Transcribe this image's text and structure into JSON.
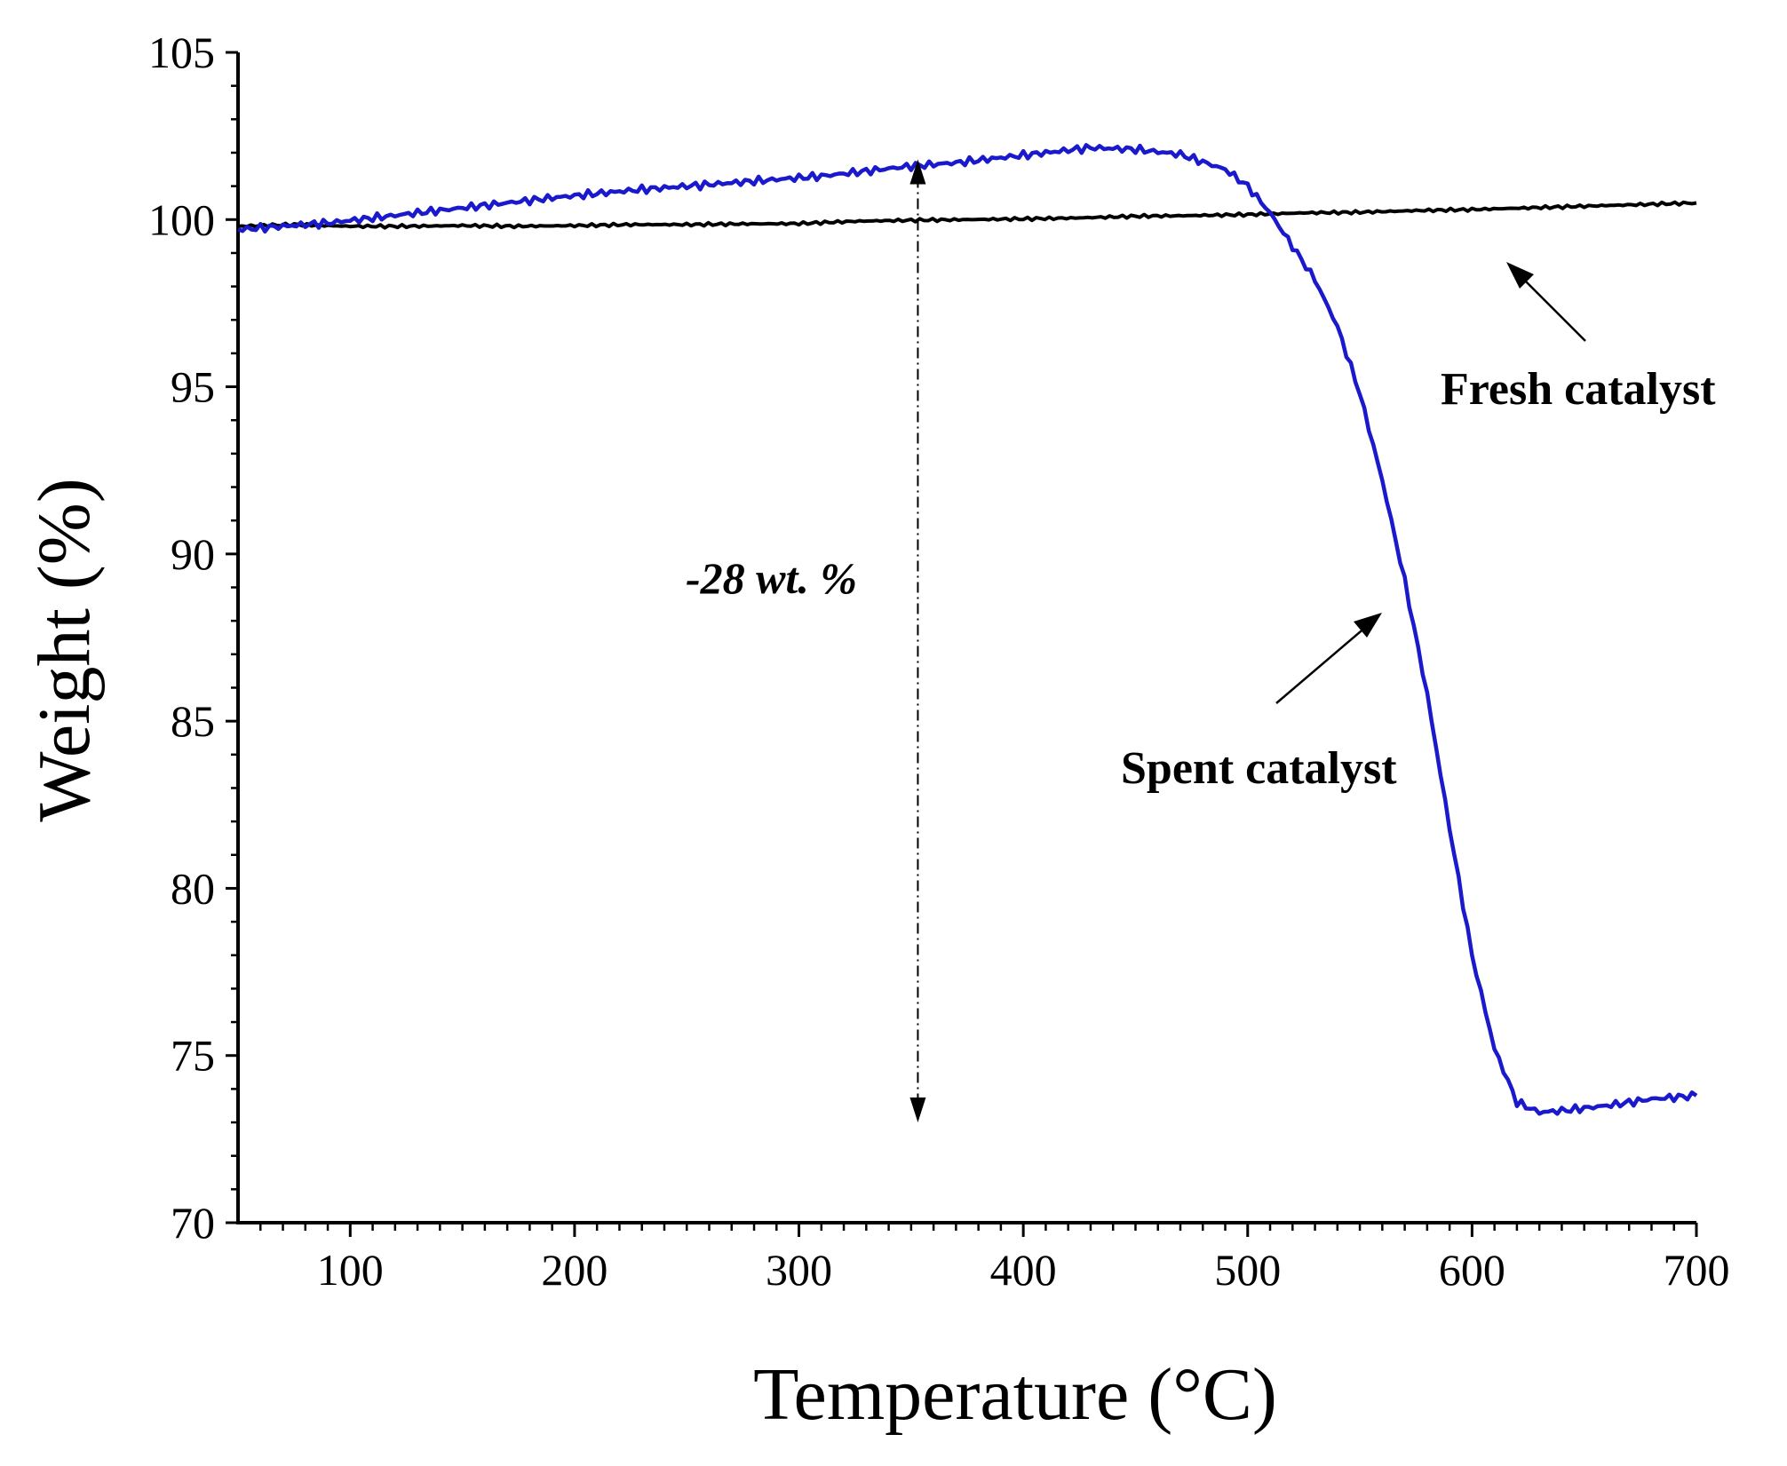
{
  "chart_data": {
    "type": "line",
    "xlabel": "Temperature (°C)",
    "ylabel": "Weight (%)",
    "xlim": [
      50,
      700
    ],
    "ylim": [
      70,
      105
    ],
    "x_ticks": [
      100,
      200,
      300,
      400,
      500,
      600,
      700
    ],
    "x_tick_labels": [
      "100",
      "200",
      "300",
      "400",
      "500",
      "600",
      "700"
    ],
    "y_ticks": [
      70,
      75,
      80,
      85,
      90,
      95,
      100,
      105
    ],
    "y_tick_labels": [
      "70",
      "75",
      "80",
      "85",
      "90",
      "95",
      "100",
      "105"
    ],
    "series": [
      {
        "name": "Fresh catalyst",
        "color": "#000000",
        "x": [
          50,
          75,
          100,
          125,
          150,
          175,
          200,
          225,
          250,
          275,
          300,
          325,
          350,
          375,
          400,
          425,
          450,
          475,
          500,
          525,
          550,
          575,
          600,
          625,
          650,
          675,
          700
        ],
        "y": [
          99.8,
          99.85,
          99.8,
          99.8,
          99.82,
          99.8,
          99.82,
          99.85,
          99.85,
          99.87,
          99.88,
          99.95,
          99.98,
          100.0,
          100.02,
          100.05,
          100.1,
          100.12,
          100.15,
          100.2,
          100.22,
          100.27,
          100.3,
          100.35,
          100.4,
          100.45,
          100.5
        ]
      },
      {
        "name": "Spent catalyst",
        "color": "#1a1acc",
        "x": [
          50,
          70,
          90,
          110,
          130,
          150,
          170,
          190,
          210,
          230,
          250,
          270,
          290,
          310,
          330,
          350,
          370,
          390,
          410,
          430,
          450,
          470,
          490,
          500,
          510,
          520,
          530,
          540,
          550,
          560,
          570,
          580,
          590,
          600,
          610,
          620,
          630,
          640,
          660,
          680,
          700
        ],
        "y": [
          99.7,
          99.8,
          99.9,
          100.05,
          100.2,
          100.35,
          100.5,
          100.65,
          100.78,
          100.9,
          101.0,
          101.1,
          101.2,
          101.3,
          101.45,
          101.6,
          101.7,
          101.85,
          102.0,
          102.15,
          102.1,
          101.95,
          101.5,
          101.0,
          100.2,
          99.2,
          98.2,
          96.8,
          94.8,
          92.2,
          89.2,
          85.8,
          81.8,
          78.0,
          75.2,
          73.6,
          73.3,
          73.35,
          73.5,
          73.7,
          73.8
        ]
      }
    ],
    "annotations": {
      "fresh_label": "Fresh catalyst",
      "spent_label": "Spent catalyst",
      "loss_label": "-28 wt. %",
      "loss_arrow_x": 353,
      "loss_arrow_y_top": 101.8,
      "loss_arrow_y_bottom": 73.0
    }
  }
}
